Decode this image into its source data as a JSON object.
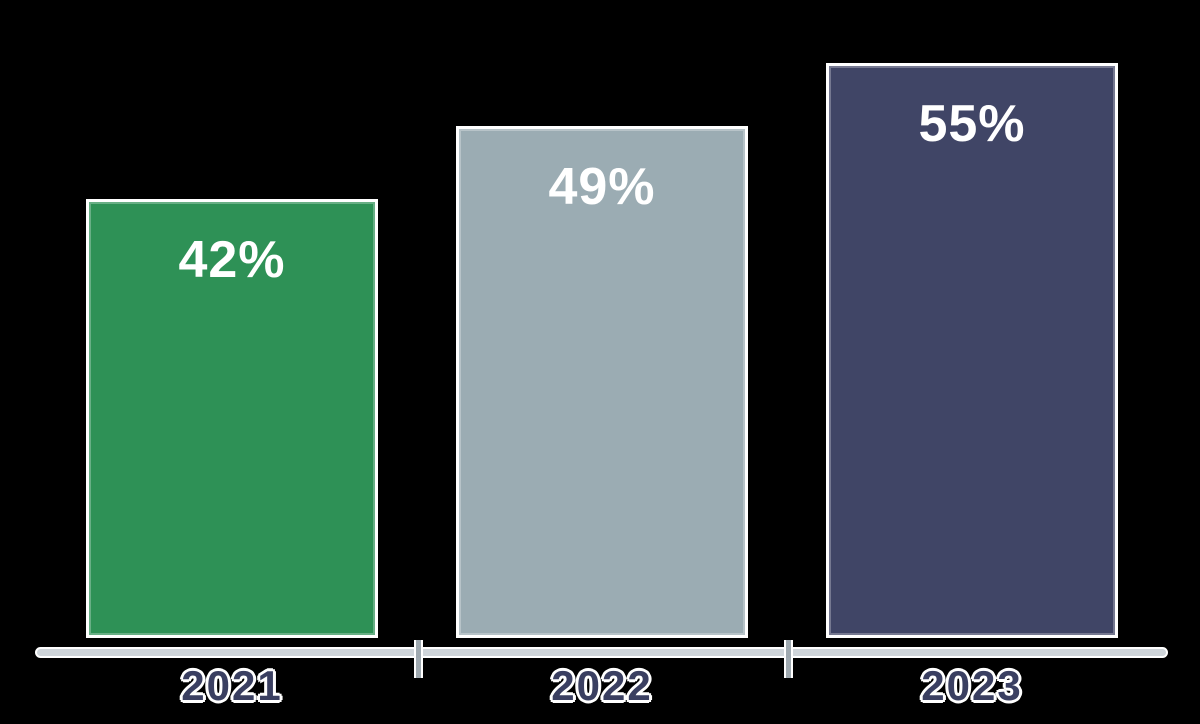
{
  "chart_data": {
    "type": "bar",
    "title": "",
    "xlabel": "",
    "ylabel": "",
    "categories": [
      "2021",
      "2022",
      "2023"
    ],
    "values": [
      42,
      49,
      55
    ],
    "value_labels": [
      "42%",
      "49%",
      "55%"
    ],
    "series_colors": [
      "#2e9156",
      "#9bacb3",
      "#404566"
    ],
    "bar_border_color": "#ffffff",
    "value_label_color": "#ffffff",
    "category_label_color": "#3a3f61",
    "axis_color": "#cfd5da",
    "tick_color": "#9fa9b0",
    "background_color": "#000000",
    "ylim": [
      0,
      60
    ],
    "grid": false,
    "legend": false
  }
}
